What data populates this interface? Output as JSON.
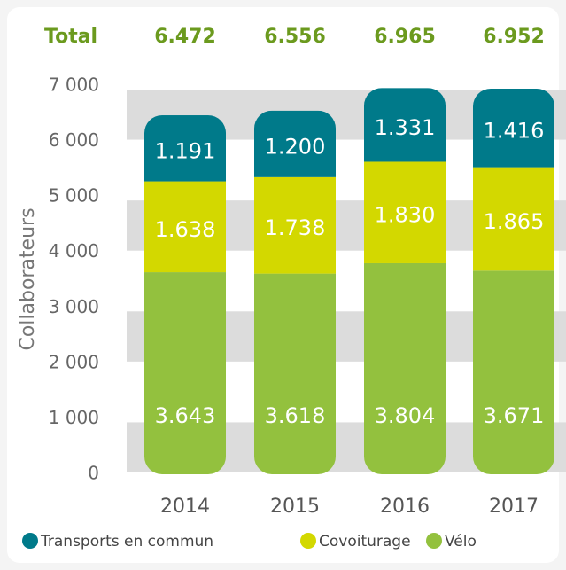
{
  "chart_data": {
    "type": "stacked_bar",
    "y_label": "Collaborateurs",
    "categories": [
      "2014",
      "2015",
      "2016",
      "2017"
    ],
    "totals": {
      "label": "Total",
      "values": [
        6472,
        6556,
        6965,
        6952
      ],
      "value_labels": [
        "6.472",
        "6.556",
        "6.965",
        "6.952"
      ],
      "color": "#6b9a1e"
    },
    "series": [
      {
        "name": "Vélo",
        "color": "#93c13e",
        "values": [
          3643,
          3618,
          3804,
          3671
        ],
        "value_labels": [
          "3.643",
          "3.618",
          "3.804",
          "3.671"
        ]
      },
      {
        "name": "Covoiturage",
        "color": "#d3d800",
        "values": [
          1638,
          1738,
          1830,
          1865
        ],
        "value_labels": [
          "1.638",
          "1.738",
          "1.830",
          "1.865"
        ]
      },
      {
        "name": "Transports en commun",
        "color": "#007a8a",
        "values": [
          1191,
          1200,
          1331,
          1416
        ],
        "value_labels": [
          "1.191",
          "1.200",
          "1.331",
          "1.416"
        ]
      }
    ],
    "ylim": [
      0,
      7000
    ],
    "yticks": [
      0,
      {
        "value": 1000,
        "label": "1 000"
      },
      {
        "value": 2000,
        "label": "2 000"
      },
      {
        "value": 3000,
        "label": "3 000"
      },
      {
        "value": 4000,
        "label": "4 000"
      },
      {
        "value": 5000,
        "label": "5 000"
      },
      {
        "value": 6000,
        "label": "6 000"
      },
      {
        "value": 7000,
        "label": "7 000"
      }
    ],
    "legend": "bottom"
  }
}
